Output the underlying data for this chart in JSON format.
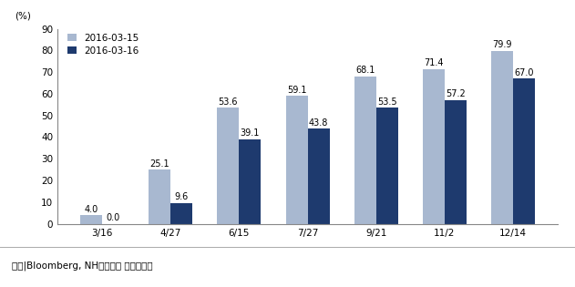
{
  "categories": [
    "3/16",
    "4/27",
    "6/15",
    "7/27",
    "9/21",
    "11/2",
    "12/14"
  ],
  "series1_label": "2016-03-15",
  "series2_label": "2016-03-16",
  "series1_values": [
    4.0,
    25.1,
    53.6,
    59.1,
    68.1,
    71.4,
    79.9
  ],
  "series2_values": [
    0.0,
    9.6,
    39.1,
    43.8,
    53.5,
    57.2,
    67.0
  ],
  "series1_color": "#a8b8d0",
  "series2_color": "#1e3a6e",
  "ylabel": "(%)",
  "ylim": [
    0,
    90
  ],
  "yticks": [
    0,
    10,
    20,
    30,
    40,
    50,
    60,
    70,
    80,
    90
  ],
  "footnote": "자료|Bloomberg, NH투자증권 리서치센터",
  "bar_width": 0.32,
  "tick_fontsize": 7.5,
  "label_fontsize": 7,
  "footnote_fontsize": 7.5,
  "legend_fontsize": 7.5
}
